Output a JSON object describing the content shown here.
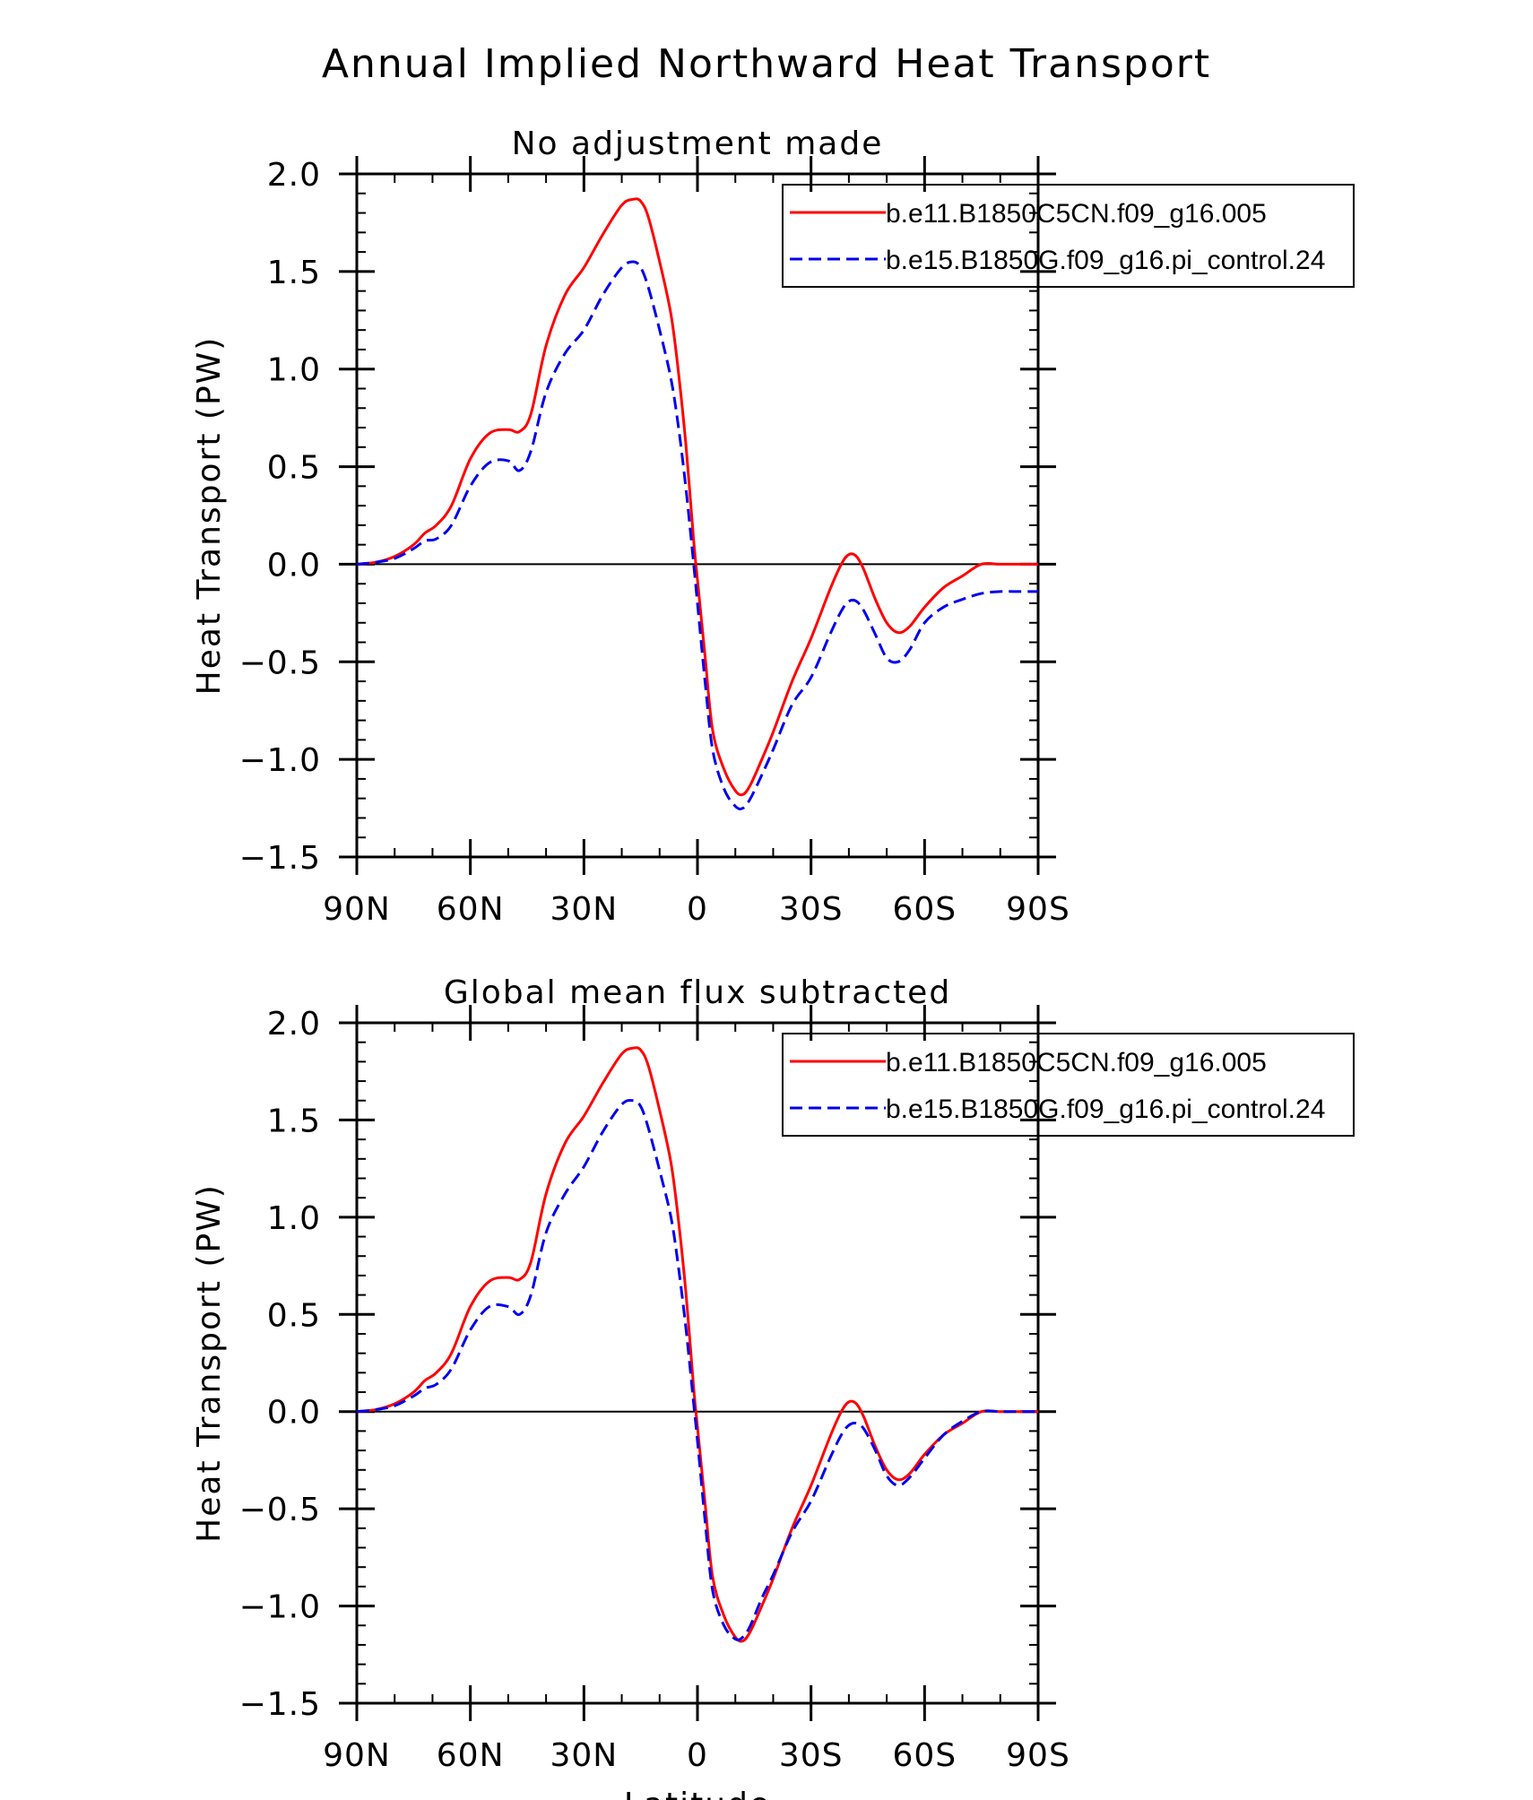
{
  "title": "Annual Implied Northward Heat Transport",
  "colors": {
    "series1": "#ff0000",
    "series2": "#0000ee",
    "axis": "#000000"
  },
  "chart_data": [
    {
      "type": "line",
      "subtitle": "No adjustment made",
      "xlabel": "",
      "ylabel": "Heat Transport (PW)",
      "xlim": [
        90,
        -90
      ],
      "ylim": [
        -1.5,
        2.0
      ],
      "xticks": [
        90,
        60,
        30,
        0,
        -30,
        -60,
        -90
      ],
      "xtick_labels": [
        "90N",
        "60N",
        "30N",
        "0",
        "30S",
        "60S",
        "90S"
      ],
      "yticks": [
        -1.5,
        -1.0,
        -0.5,
        0.0,
        0.5,
        1.0,
        1.5,
        2.0
      ],
      "ytick_labels": [
        "−1.5",
        "−1.0",
        "−0.5",
        "0.0",
        "0.5",
        "1.0",
        "1.5",
        "2.0"
      ],
      "legend_position": "top-right",
      "series": [
        {
          "name": "b.e11.B1850C5CN.f09_g16.005",
          "style": "solid",
          "x": [
            90,
            85,
            80,
            75,
            72,
            69,
            65,
            60,
            55,
            50,
            47,
            44,
            40,
            35,
            30,
            25,
            20,
            17,
            15,
            13,
            10,
            7,
            5,
            3,
            1,
            0,
            -2,
            -4,
            -7,
            -10,
            -12,
            -14,
            -17,
            -20,
            -25,
            -30,
            -35,
            -38,
            -40,
            -42,
            -44,
            -47,
            -50,
            -53,
            -56,
            -60,
            -65,
            -70,
            -75,
            -80,
            -85,
            -90
          ],
          "values": [
            0.0,
            0.01,
            0.04,
            0.1,
            0.16,
            0.2,
            0.3,
            0.54,
            0.67,
            0.69,
            0.68,
            0.77,
            1.12,
            1.38,
            1.52,
            1.69,
            1.84,
            1.87,
            1.86,
            1.78,
            1.55,
            1.28,
            0.98,
            0.6,
            0.12,
            -0.08,
            -0.47,
            -0.85,
            -1.05,
            -1.16,
            -1.18,
            -1.13,
            -1.0,
            -0.86,
            -0.6,
            -0.38,
            -0.13,
            0.0,
            0.05,
            0.04,
            -0.03,
            -0.18,
            -0.3,
            -0.35,
            -0.32,
            -0.22,
            -0.12,
            -0.06,
            0.0,
            0.0,
            0.0,
            0.0
          ]
        },
        {
          "name": "b.e15.B1850G.f09_g16.pi_control.24",
          "style": "dashed",
          "x": [
            90,
            85,
            80,
            75,
            72,
            69,
            65,
            60,
            55,
            50,
            47,
            44,
            40,
            35,
            30,
            25,
            20,
            17,
            15,
            13,
            10,
            7,
            5,
            3,
            1,
            0,
            -2,
            -4,
            -7,
            -10,
            -12,
            -14,
            -17,
            -20,
            -25,
            -30,
            -35,
            -38,
            -40,
            -42,
            -44,
            -47,
            -50,
            -53,
            -56,
            -60,
            -65,
            -70,
            -75,
            -80,
            -85,
            -90
          ],
          "values": [
            0.0,
            0.01,
            0.03,
            0.08,
            0.12,
            0.13,
            0.2,
            0.4,
            0.52,
            0.53,
            0.48,
            0.58,
            0.88,
            1.08,
            1.2,
            1.38,
            1.52,
            1.55,
            1.52,
            1.42,
            1.2,
            0.95,
            0.7,
            0.38,
            0.0,
            -0.2,
            -0.6,
            -0.95,
            -1.15,
            -1.24,
            -1.25,
            -1.2,
            -1.08,
            -0.95,
            -0.72,
            -0.58,
            -0.36,
            -0.24,
            -0.19,
            -0.19,
            -0.24,
            -0.36,
            -0.48,
            -0.5,
            -0.44,
            -0.3,
            -0.22,
            -0.18,
            -0.15,
            -0.14,
            -0.14,
            -0.14
          ]
        }
      ]
    },
    {
      "type": "line",
      "subtitle": "Global mean flux subtracted",
      "xlabel": "Latitude",
      "ylabel": "Heat Transport (PW)",
      "xlim": [
        90,
        -90
      ],
      "ylim": [
        -1.5,
        2.0
      ],
      "xticks": [
        90,
        60,
        30,
        0,
        -30,
        -60,
        -90
      ],
      "xtick_labels": [
        "90N",
        "60N",
        "30N",
        "0",
        "30S",
        "60S",
        "90S"
      ],
      "yticks": [
        -1.5,
        -1.0,
        -0.5,
        0.0,
        0.5,
        1.0,
        1.5,
        2.0
      ],
      "ytick_labels": [
        "−1.5",
        "−1.0",
        "−0.5",
        "0.0",
        "0.5",
        "1.0",
        "1.5",
        "2.0"
      ],
      "legend_position": "top-right",
      "series": [
        {
          "name": "b.e11.B1850C5CN.f09_g16.005",
          "style": "solid",
          "x": [
            90,
            85,
            80,
            75,
            72,
            69,
            65,
            60,
            55,
            50,
            47,
            44,
            40,
            35,
            30,
            25,
            20,
            17,
            15,
            13,
            10,
            7,
            5,
            3,
            1,
            0,
            -2,
            -4,
            -7,
            -10,
            -12,
            -14,
            -17,
            -20,
            -25,
            -30,
            -35,
            -38,
            -40,
            -42,
            -44,
            -47,
            -50,
            -53,
            -56,
            -60,
            -65,
            -70,
            -75,
            -80,
            -85,
            -90
          ],
          "values": [
            0.0,
            0.01,
            0.04,
            0.1,
            0.16,
            0.2,
            0.3,
            0.54,
            0.67,
            0.69,
            0.68,
            0.77,
            1.12,
            1.38,
            1.52,
            1.69,
            1.84,
            1.87,
            1.86,
            1.78,
            1.55,
            1.28,
            0.98,
            0.6,
            0.12,
            -0.08,
            -0.47,
            -0.85,
            -1.05,
            -1.16,
            -1.18,
            -1.13,
            -1.0,
            -0.86,
            -0.6,
            -0.38,
            -0.13,
            0.0,
            0.05,
            0.04,
            -0.03,
            -0.18,
            -0.3,
            -0.35,
            -0.32,
            -0.22,
            -0.12,
            -0.06,
            0.0,
            0.0,
            0.0,
            0.0
          ]
        },
        {
          "name": "b.e15.B1850G.f09_g16.pi_control.24",
          "style": "dashed",
          "x": [
            90,
            85,
            80,
            75,
            72,
            69,
            65,
            60,
            55,
            50,
            47,
            44,
            40,
            35,
            30,
            25,
            20,
            17,
            15,
            13,
            10,
            7,
            5,
            3,
            1,
            0,
            -2,
            -4,
            -7,
            -10,
            -12,
            -14,
            -17,
            -20,
            -25,
            -30,
            -35,
            -38,
            -40,
            -42,
            -44,
            -47,
            -50,
            -53,
            -56,
            -60,
            -65,
            -70,
            -75,
            -80,
            -85,
            -90
          ],
          "values": [
            0.0,
            0.01,
            0.03,
            0.08,
            0.12,
            0.14,
            0.22,
            0.42,
            0.54,
            0.54,
            0.5,
            0.6,
            0.92,
            1.12,
            1.26,
            1.44,
            1.58,
            1.6,
            1.57,
            1.46,
            1.24,
            1.0,
            0.74,
            0.42,
            0.04,
            -0.15,
            -0.56,
            -0.92,
            -1.1,
            -1.17,
            -1.16,
            -1.1,
            -0.96,
            -0.84,
            -0.62,
            -0.46,
            -0.24,
            -0.12,
            -0.07,
            -0.06,
            -0.09,
            -0.2,
            -0.33,
            -0.38,
            -0.34,
            -0.24,
            -0.12,
            -0.05,
            0.0,
            0.0,
            0.0,
            0.0
          ]
        }
      ]
    }
  ]
}
